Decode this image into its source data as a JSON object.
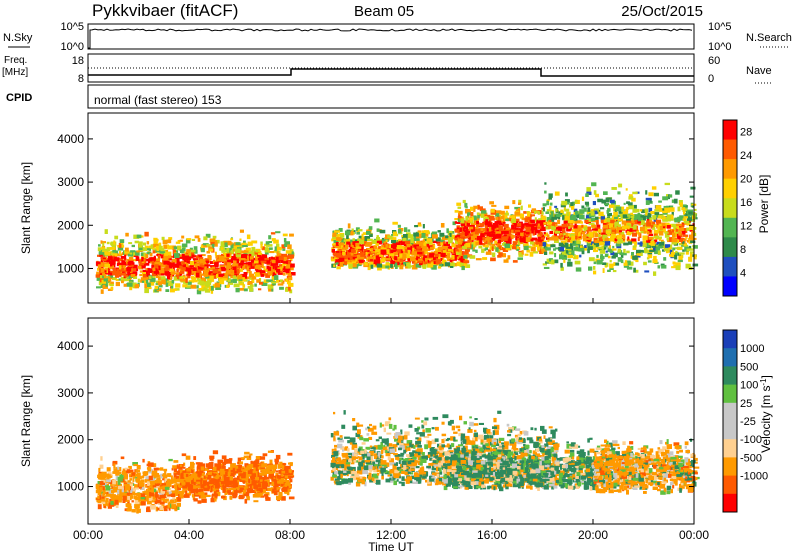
{
  "header": {
    "station": "Pykkvibaer (fitACF)",
    "beam": "Beam 05",
    "date": "25/Oct/2015"
  },
  "nsky_panel": {
    "label": "N.Sky",
    "right_label": "N.Search",
    "left_ticks": [
      "10^5",
      "10^0"
    ],
    "right_ticks": [
      "10^5",
      "10^0"
    ]
  },
  "freq_panel": {
    "label_line1": "Freq.",
    "label_line2": "[MHz]",
    "left_ticks": [
      "18",
      "8"
    ],
    "right_label": "Nave",
    "right_ticks": [
      "60",
      "0"
    ]
  },
  "cpid_panel": {
    "label": "CPID",
    "text": "normal (fast stereo) 153"
  },
  "colors": {
    "power_scale": [
      "#0000ff",
      "#1f4fbf",
      "#2e8a4a",
      "#52b552",
      "#c8dc1c",
      "#ffd000",
      "#ff9a00",
      "#ff5a00",
      "#ff0000"
    ],
    "velocity_scale": [
      "#ff0000",
      "#ff5a00",
      "#ff9a00",
      "#ffd090",
      "#c8c8c8",
      "#c8c8c8",
      "#60c040",
      "#2e8a5e",
      "#1f6fb0",
      "#1a3fb8"
    ],
    "velocity_ground": "#c8c8c8"
  },
  "chart_data": [
    {
      "type": "heatmap",
      "panel": "power",
      "ylabel": "Slant Range [km]",
      "yticks": [
        "1000",
        "2000",
        "3000",
        "4000"
      ],
      "ylim": [
        200,
        4600
      ],
      "xlim": [
        "00:00",
        "24:00"
      ],
      "colorbar_label": "Power [dB]",
      "colorbar_ticks": [
        "4",
        "8",
        "12",
        "16",
        "20",
        "24",
        "28"
      ],
      "colorbar_range": [
        0,
        30
      ],
      "scatter_regions": [
        {
          "t_start": 0.3,
          "t_end": 8.0,
          "r_min": 500,
          "r_max": 2000,
          "center": 1100,
          "value": 22
        },
        {
          "t_start": 9.6,
          "t_end": 15.0,
          "r_min": 1050,
          "r_max": 2500,
          "center": 1400,
          "value": 20
        },
        {
          "t_start": 14.5,
          "t_end": 18.0,
          "r_min": 1100,
          "r_max": 2600,
          "center": 1900,
          "value": 24
        },
        {
          "t_start": 18.0,
          "t_end": 24.0,
          "r_min": 900,
          "r_max": 3000,
          "center": 1900,
          "value": 18
        }
      ]
    },
    {
      "type": "heatmap",
      "panel": "velocity",
      "ylabel": "Slant Range [km]",
      "yticks": [
        "1000",
        "2000",
        "3000",
        "4000"
      ],
      "ylim": [
        200,
        4600
      ],
      "xlabel": "Time UT",
      "xticks": [
        "00:00",
        "04:00",
        "08:00",
        "12:00",
        "16:00",
        "20:00",
        "00:00"
      ],
      "xlim": [
        "00:00",
        "24:00"
      ],
      "colorbar_label": "Velocity [m s-1]",
      "colorbar_ticks": [
        "1000",
        "500",
        "100",
        "25",
        "-25",
        "-100",
        "-500",
        "-1000"
      ],
      "scatter_regions": [
        {
          "t_start": 0.3,
          "t_end": 3.5,
          "r_min": 500,
          "r_max": 1700,
          "center": 1000,
          "value": -300
        },
        {
          "t_start": 3.5,
          "t_end": 8.0,
          "r_min": 700,
          "r_max": 1800,
          "center": 1200,
          "value": -500
        },
        {
          "t_start": 9.6,
          "t_end": 18.5,
          "r_min": 1100,
          "r_max": 3200,
          "center": 1500,
          "value": 0
        },
        {
          "t_start": 14.0,
          "t_end": 22.0,
          "r_min": 1000,
          "r_max": 2400,
          "center": 1300,
          "value": 150
        },
        {
          "t_start": 20.0,
          "t_end": 24.0,
          "r_min": 900,
          "r_max": 2200,
          "center": 1400,
          "value": -200
        }
      ]
    }
  ]
}
